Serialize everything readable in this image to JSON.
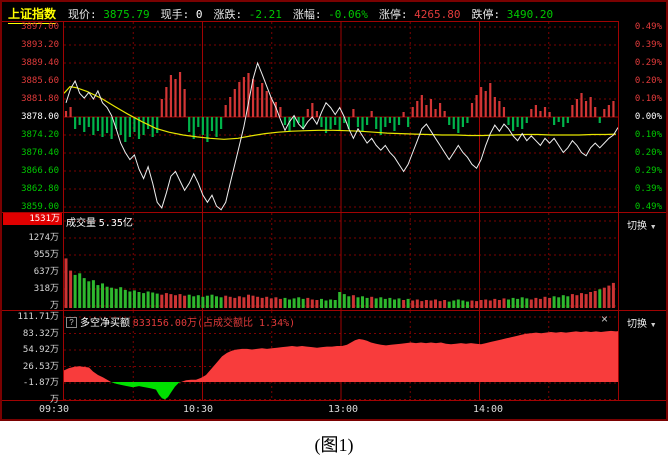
{
  "top_bar": {
    "title": "上证指数",
    "fields": [
      {
        "label": "现价:",
        "value": "3875.79",
        "color": "green"
      },
      {
        "label": "现手:",
        "value": "0",
        "color": "white"
      },
      {
        "label": "涨跌:",
        "value": "-2.21",
        "color": "green"
      },
      {
        "label": "涨幅:",
        "value": "-0.06%",
        "color": "green"
      },
      {
        "label": "涨停:",
        "value": "4265.80",
        "color": "red"
      },
      {
        "label": "跌停:",
        "value": "3490.20",
        "color": "green"
      }
    ]
  },
  "controls": {
    "switch_label": "切换",
    "switch_arrow": "▼",
    "close_label": "×",
    "help_label": "?"
  },
  "caption": "(图1)",
  "colors": {
    "red": "#e23b3b",
    "green": "#00c800",
    "white": "#ffffff",
    "yellow": "#e6e600",
    "grid_solid": "#a00303",
    "grid_dashed": "#7c0202",
    "price_line": "#eeeeee",
    "avg_line": "#e6e600",
    "hist_red": "#d23535",
    "hist_green": "#00b44a",
    "vol_red": "#cc3434",
    "vol_green": "#2eb82e",
    "area_red": "#f83c3c",
    "area_green": "#00e000",
    "highlight_bg": "#e00000"
  },
  "chart_data": {
    "panels": [
      {
        "id": "main",
        "type": "line",
        "ylim": [
          3859.0,
          3897.0
        ],
        "prev_close": 3878.0,
        "grid": true,
        "y_ticks_left": [
          "3897.00",
          "3893.20",
          "3889.40",
          "3885.60",
          "3881.80",
          "3878.00",
          "3874.20",
          "3870.40",
          "3866.60",
          "3862.80",
          "3859.00"
        ],
        "y_ticks_right": [
          "0.49%",
          "0.39%",
          "0.29%",
          "0.20%",
          "0.10%",
          "0.00%",
          "0.10%",
          "0.20%",
          "0.29%",
          "0.39%",
          "0.49%"
        ],
        "series": [
          {
            "name": "price",
            "type": "line",
            "values": [
              3881.0,
              3884.0,
              3885.6,
              3883.0,
              3882.0,
              3883.2,
              3881.8,
              3883.5,
              3881.0,
              3880.0,
              3878.3,
              3875.5,
              3872.5,
              3870.5,
              3869.0,
              3870.0,
              3867.0,
              3865.0,
              3867.5,
              3864.0,
              3860.0,
              3858.8,
              3862.0,
              3865.5,
              3866.5,
              3864.5,
              3862.5,
              3864.0,
              3866.0,
              3864.0,
              3861.5,
              3860.0,
              3861.5,
              3859.2,
              3858.4,
              3860.0,
              3864.0,
              3868.0,
              3872.0,
              3876.0,
              3881.0,
              3886.0,
              3889.4,
              3887.0,
              3884.5,
              3882.0,
              3880.0,
              3877.5,
              3875.2,
              3877.0,
              3878.3,
              3876.5,
              3875.5,
              3877.0,
              3878.0,
              3876.5,
              3879.0,
              3881.0,
              3880.0,
              3878.5,
              3880.0,
              3878.0,
              3875.5,
              3873.5,
              3875.5,
              3874.0,
              3872.5,
              3873.5,
              3872.0,
              3871.0,
              3872.0,
              3870.5,
              3869.5,
              3868.0,
              3866.5,
              3868.0,
              3870.5,
              3873.0,
              3875.5,
              3876.5,
              3875.0,
              3873.5,
              3872.0,
              3870.5,
              3869.0,
              3870.5,
              3872.0,
              3870.5,
              3869.5,
              3868.0,
              3867.2,
              3869.0,
              3872.0,
              3874.5,
              3876.3,
              3875.0,
              3876.5,
              3875.5,
              3874.0,
              3873.0,
              3874.5,
              3873.0,
              3874.0,
              3873.0,
              3872.0,
              3873.5,
              3872.5,
              3873.5,
              3872.0,
              3870.5,
              3871.5,
              3873.0,
              3872.0,
              3870.5,
              3869.8,
              3871.5,
              3872.5,
              3871.5,
              3872.5,
              3873.5,
              3874.2,
              3875.79
            ]
          },
          {
            "name": "avg_price",
            "type": "line",
            "points": [
              [
                0,
                3883.0
              ],
              [
                6,
                3884.4
              ],
              [
                12,
                3884.2
              ],
              [
                23,
                3883.4
              ],
              [
                37,
                3882.0
              ],
              [
                51,
                3880.2
              ],
              [
                64,
                3878.6
              ],
              [
                78,
                3877.0
              ],
              [
                92,
                3875.6
              ],
              [
                105,
                3874.8
              ],
              [
                119,
                3874.2
              ],
              [
                133,
                3873.8
              ],
              [
                146,
                3873.5
              ],
              [
                160,
                3873.3
              ],
              [
                174,
                3873.5
              ],
              [
                187,
                3874.0
              ],
              [
                201,
                3874.5
              ],
              [
                214,
                3874.8
              ],
              [
                228,
                3875.0
              ],
              [
                242,
                3875.1
              ],
              [
                255,
                3875.2
              ],
              [
                269,
                3875.2
              ],
              [
                282,
                3875.1
              ],
              [
                296,
                3875.0
              ],
              [
                310,
                3874.8
              ],
              [
                323,
                3874.6
              ],
              [
                337,
                3874.5
              ],
              [
                351,
                3874.4
              ],
              [
                364,
                3874.3
              ],
              [
                378,
                3874.2
              ],
              [
                392,
                3874.2
              ],
              [
                405,
                3874.1
              ],
              [
                419,
                3874.1
              ],
              [
                433,
                3874.2
              ],
              [
                446,
                3874.2
              ],
              [
                460,
                3874.3
              ],
              [
                474,
                3874.3
              ],
              [
                487,
                3874.2
              ],
              [
                501,
                3874.2
              ],
              [
                515,
                3874.2
              ],
              [
                528,
                3874.3
              ],
              [
                542,
                3874.3
              ],
              [
                552,
                3874.4
              ]
            ]
          },
          {
            "name": "minute_momentum",
            "type": "bar",
            "unit": "relative",
            "values": [
              6,
              10,
              -12,
              -8,
              -15,
              -10,
              -18,
              -14,
              -20,
              -16,
              -22,
              -12,
              -18,
              -25,
              -20,
              -15,
              -22,
              -18,
              -12,
              -20,
              -16,
              18,
              30,
              42,
              38,
              45,
              28,
              -15,
              -22,
              -10,
              -18,
              -25,
              -14,
              -20,
              -12,
              12,
              20,
              28,
              35,
              40,
              44,
              38,
              30,
              34,
              26,
              20,
              15,
              10,
              -8,
              -14,
              -10,
              -6,
              -12,
              8,
              14,
              6,
              -10,
              -16,
              -12,
              -8,
              -14,
              -6,
              -12,
              8,
              -10,
              -15,
              -8,
              6,
              -12,
              -18,
              -10,
              -6,
              -14,
              -8,
              5,
              -10,
              10,
              16,
              22,
              12,
              18,
              8,
              14,
              6,
              -8,
              -12,
              -16,
              -10,
              -6,
              14,
              22,
              30,
              26,
              34,
              20,
              16,
              10,
              -8,
              -14,
              -10,
              -12,
              -6,
              8,
              12,
              6,
              10,
              5,
              -8,
              -5,
              -10,
              -6,
              12,
              18,
              24,
              16,
              20,
              10,
              -6,
              8,
              12,
              16
            ]
          }
        ]
      },
      {
        "id": "volume",
        "type": "bar",
        "label": "成交量",
        "total": "5.35亿",
        "unit": "万",
        "ylim": [
          0,
          1531
        ],
        "y_ticks": [
          "1531万",
          "1274万",
          "955万",
          "637万",
          "318万",
          "万"
        ],
        "values": [
          930,
          700,
          620,
          650,
          560,
          500,
          520,
          430,
          460,
          400,
          380,
          360,
          390,
          340,
          310,
          330,
          300,
          280,
          310,
          290,
          270,
          250,
          280,
          260,
          240,
          260,
          230,
          250,
          220,
          240,
          210,
          230,
          250,
          220,
          200,
          230,
          210,
          190,
          220,
          200,
          250,
          230,
          210,
          190,
          210,
          180,
          200,
          170,
          190,
          160,
          180,
          200,
          170,
          190,
          160,
          150,
          170,
          140,
          160,
          150,
          300,
          260,
          220,
          240,
          200,
          220,
          190,
          210,
          180,
          200,
          170,
          190,
          160,
          180,
          150,
          170,
          140,
          160,
          130,
          150,
          140,
          160,
          130,
          150,
          120,
          140,
          160,
          140,
          120,
          140,
          130,
          150,
          160,
          140,
          170,
          150,
          180,
          160,
          190,
          170,
          200,
          180,
          160,
          190,
          170,
          210,
          190,
          220,
          200,
          240,
          220,
          260,
          240,
          280,
          260,
          300,
          320,
          350,
          380,
          420,
          470
        ]
      },
      {
        "id": "net_buy",
        "type": "area",
        "title": "多空净买额",
        "value_text": "833156.00万(占成交额比 1.34%)",
        "unit": "万",
        "ylim": [
          -30.26,
          111.71
        ],
        "y_ticks": [
          "111.71万",
          "83.32万",
          "54.92万",
          "26.53万",
          "-1.87万",
          "万"
        ],
        "points": [
          [
            0,
            20
          ],
          [
            5,
            24
          ],
          [
            10,
            26
          ],
          [
            15,
            27
          ],
          [
            20,
            26
          ],
          [
            25,
            25
          ],
          [
            29,
            18
          ],
          [
            34,
            12
          ],
          [
            39,
            8
          ],
          [
            44,
            3
          ],
          [
            47,
            0
          ],
          [
            52,
            -3
          ],
          [
            57,
            -5
          ],
          [
            63,
            -7
          ],
          [
            69,
            -9
          ],
          [
            75,
            -7
          ],
          [
            81,
            -9
          ],
          [
            87,
            -11
          ],
          [
            92,
            -13
          ],
          [
            95,
            -22
          ],
          [
            98,
            -28
          ],
          [
            101,
            -30
          ],
          [
            104,
            -26
          ],
          [
            107,
            -18
          ],
          [
            111,
            -8
          ],
          [
            115,
            -1
          ],
          [
            117,
            0
          ],
          [
            122,
            3
          ],
          [
            127,
            4
          ],
          [
            132,
            4
          ],
          [
            137,
            7
          ],
          [
            142,
            12
          ],
          [
            146,
            20
          ],
          [
            150,
            28
          ],
          [
            154,
            36
          ],
          [
            158,
            44
          ],
          [
            163,
            50
          ],
          [
            168,
            54
          ],
          [
            173,
            56
          ],
          [
            178,
            57
          ],
          [
            183,
            57
          ],
          [
            188,
            56
          ],
          [
            193,
            57
          ],
          [
            198,
            58
          ],
          [
            203,
            57
          ],
          [
            208,
            58
          ],
          [
            213,
            59
          ],
          [
            218,
            60
          ],
          [
            223,
            61
          ],
          [
            228,
            62
          ],
          [
            233,
            61
          ],
          [
            238,
            62
          ],
          [
            243,
            61
          ],
          [
            248,
            60
          ],
          [
            253,
            59
          ],
          [
            258,
            60
          ],
          [
            263,
            61
          ],
          [
            268,
            61
          ],
          [
            273,
            62
          ],
          [
            278,
            62
          ],
          [
            283,
            64
          ],
          [
            287,
            68
          ],
          [
            291,
            72
          ],
          [
            295,
            74
          ],
          [
            299,
            73
          ],
          [
            303,
            71
          ],
          [
            307,
            68
          ],
          [
            312,
            66
          ],
          [
            317,
            64
          ],
          [
            322,
            63
          ],
          [
            327,
            64
          ],
          [
            332,
            65
          ],
          [
            337,
            66
          ],
          [
            342,
            67
          ],
          [
            347,
            68
          ],
          [
            352,
            67
          ],
          [
            357,
            68
          ],
          [
            362,
            67
          ],
          [
            367,
            68
          ],
          [
            372,
            67
          ],
          [
            377,
            68
          ],
          [
            382,
            66
          ],
          [
            387,
            65
          ],
          [
            392,
            66
          ],
          [
            397,
            67
          ],
          [
            402,
            66
          ],
          [
            407,
            67
          ],
          [
            412,
            66
          ],
          [
            417,
            65
          ],
          [
            422,
            67
          ],
          [
            427,
            69
          ],
          [
            432,
            71
          ],
          [
            437,
            73
          ],
          [
            442,
            75
          ],
          [
            447,
            77
          ],
          [
            452,
            79
          ],
          [
            457,
            81
          ],
          [
            462,
            83
          ],
          [
            467,
            84
          ],
          [
            472,
            85
          ],
          [
            477,
            84
          ],
          [
            482,
            85
          ],
          [
            487,
            86
          ],
          [
            492,
            85
          ],
          [
            497,
            86
          ],
          [
            502,
            85
          ],
          [
            507,
            86
          ],
          [
            512,
            87
          ],
          [
            517,
            86
          ],
          [
            522,
            87
          ],
          [
            527,
            86
          ],
          [
            532,
            87
          ],
          [
            537,
            86
          ],
          [
            542,
            87
          ],
          [
            547,
            88
          ],
          [
            552,
            87
          ],
          [
            555,
            88
          ]
        ]
      }
    ],
    "x_axis": {
      "labels": [
        "09:30",
        "10:30",
        "13:00",
        "14:00"
      ],
      "session": "09:30-11:30 13:00-15:00"
    }
  }
}
